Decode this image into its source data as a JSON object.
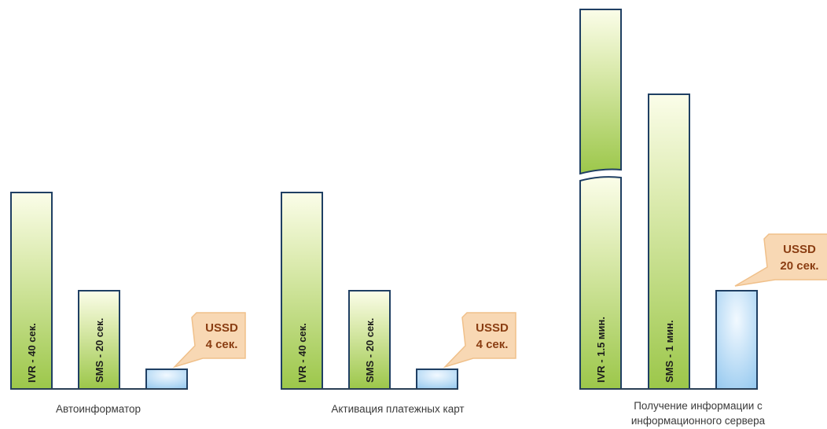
{
  "chart_data": [
    {
      "type": "bar",
      "group_label": [
        "Автоинформатор"
      ],
      "bars": [
        {
          "label": "IVR - 40 сек.",
          "seconds": 40,
          "style": "green"
        },
        {
          "label": "SMS - 20 сек.",
          "seconds": 20,
          "style": "green"
        },
        {
          "label": "USSD 4 сек.",
          "seconds": 4,
          "style": "blue",
          "callout": [
            "USSD",
            "4 сек."
          ]
        }
      ]
    },
    {
      "type": "bar",
      "group_label": [
        "Активация платежных карт"
      ],
      "bars": [
        {
          "label": "IVR - 40 сек.",
          "seconds": 40,
          "style": "green"
        },
        {
          "label": "SMS - 20 сек.",
          "seconds": 20,
          "style": "green"
        },
        {
          "label": "USSD 4 сек.",
          "seconds": 4,
          "style": "blue",
          "callout": [
            "USSD",
            "4 сек."
          ]
        }
      ]
    },
    {
      "type": "bar",
      "group_label": [
        "Получение информации с",
        "информационного сервера"
      ],
      "bars": [
        {
          "label": "IVR - 1.5 мин.",
          "seconds": 90,
          "style": "green",
          "broken_axis": true
        },
        {
          "label": "SMS - 1 мин.",
          "seconds": 60,
          "style": "green"
        },
        {
          "label": "USSD 20 сек.",
          "seconds": 20,
          "style": "blue",
          "callout": [
            "USSD",
            "20 сек."
          ]
        }
      ]
    }
  ],
  "colors": {
    "green_fill_light": "#fbfde9",
    "green_fill_dark": "#9cc74a",
    "blue_fill_light": "#f2f9ff",
    "blue_fill_dark": "#8ec5ee",
    "bar_border": "#1f3f63",
    "baseline": "#2a3f55",
    "callout_fill": "#f8d8b4",
    "callout_border": "#f0c08a",
    "callout_text": "#8a3d12"
  }
}
